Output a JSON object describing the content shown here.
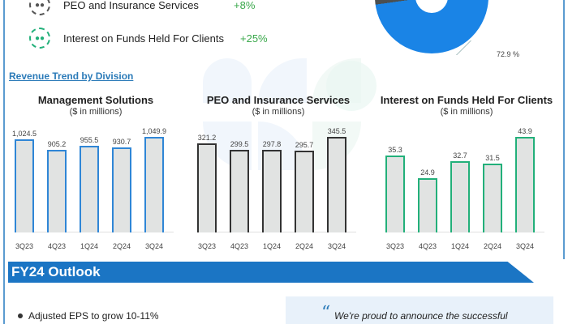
{
  "divisions": [
    {
      "label": "PEO and Insurance Services",
      "growth": "+8%",
      "icon": "people-group-icon",
      "color": "#555555"
    },
    {
      "label": "Interest on Funds Held For Clients",
      "growth": "+25%",
      "icon": "people-group-icon",
      "color": "#22b07a"
    }
  ],
  "donut": {
    "label": "72.9 %",
    "slices": [
      {
        "value": 72.9,
        "color": "#1a84e6"
      },
      {
        "value": 27.1,
        "color": "#4b4f50"
      }
    ]
  },
  "section": {
    "revenue_trend": "Revenue Trend by Division"
  },
  "chart_data": [
    {
      "type": "bar",
      "title": "Management Solutions",
      "subtitle": "($ in millions)",
      "categories": [
        "3Q23",
        "4Q23",
        "1Q24",
        "2Q24",
        "3Q24"
      ],
      "values": [
        1024.5,
        905.2,
        955.5,
        930.7,
        1049.9
      ],
      "value_labels": [
        "1,024.5",
        "905.2",
        "955.5",
        "930.7",
        "1,049.9"
      ],
      "bar_color": "#2f86d6",
      "xlabel": "",
      "ylabel": "$ in millions",
      "grid": false
    },
    {
      "type": "bar",
      "title": "PEO and Insurance Services",
      "subtitle": "($ in millions)",
      "categories": [
        "3Q23",
        "4Q23",
        "1Q24",
        "2Q24",
        "3Q24"
      ],
      "values": [
        321.2,
        299.5,
        297.8,
        295.7,
        345.5
      ],
      "value_labels": [
        "321.2",
        "299.5",
        "297.8",
        "295.7",
        "345.5"
      ],
      "bar_color": "#333333",
      "xlabel": "",
      "ylabel": "$ in millions",
      "grid": false
    },
    {
      "type": "bar",
      "title": "Interest on Funds Held For Clients",
      "subtitle": "($ in millions)",
      "categories": [
        "3Q23",
        "4Q23",
        "1Q24",
        "2Q24",
        "3Q24"
      ],
      "values": [
        35.3,
        24.9,
        32.7,
        31.5,
        43.9
      ],
      "value_labels": [
        "35.3",
        "24.9",
        "32.7",
        "31.5",
        "43.9"
      ],
      "bar_color": "#22b07a",
      "xlabel": "",
      "ylabel": "$ in millions",
      "grid": false
    }
  ],
  "outlook": {
    "title": "FY24 Outlook",
    "bullets": [
      "Adjusted EPS to grow 10-11%"
    ],
    "quote": "We're proud to announce the successful"
  }
}
